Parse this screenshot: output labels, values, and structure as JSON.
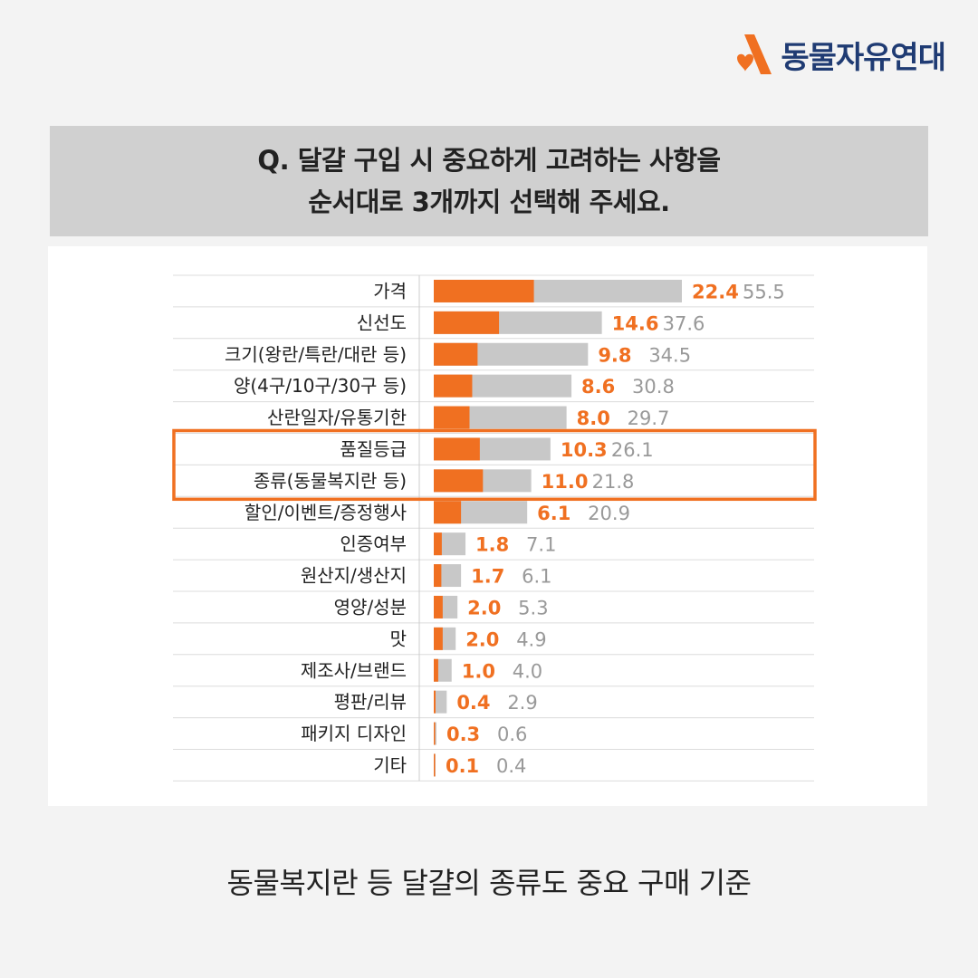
{
  "brand": {
    "name": "동물자유연대",
    "accent_color": "#f07021",
    "text_color": "#1f3b73",
    "logo_icon": "heart-a-logo-icon"
  },
  "question": {
    "line1": "Q. 달걀 구입 시 중요하게 고려하는 사항을",
    "line2": "순서대로 3개까지 선택해 주세요."
  },
  "caption": "동물복지란 등 달걀의 종류도 중요 구매 기준",
  "chart_data": {
    "type": "bar",
    "orientation": "horizontal",
    "categories": [
      "가격",
      "신선도",
      "크기(왕란/특란/대란 등)",
      "양(4구/10구/30구 등)",
      "산란일자/유통기한",
      "품질등급",
      "종류(동물복지란 등)",
      "할인/이벤트/증정행사",
      "인증여부",
      "원산지/생산지",
      "영양/성분",
      "맛",
      "제조사/브랜드",
      "평판/리뷰",
      "패키지 디자인",
      "기타"
    ],
    "series": [
      {
        "color": "#f07021",
        "values": [
          22.4,
          14.6,
          9.8,
          8.6,
          8.0,
          10.3,
          11.0,
          6.1,
          1.8,
          1.7,
          2.0,
          2.0,
          1.0,
          0.4,
          0.3,
          0.1
        ]
      },
      {
        "color": "#c8c8c8",
        "values": [
          55.5,
          37.6,
          34.5,
          30.8,
          29.7,
          26.1,
          21.8,
          20.9,
          7.1,
          6.1,
          5.3,
          4.9,
          4.0,
          2.9,
          0.6,
          0.4
        ]
      }
    ],
    "value_labels": {
      "first": [
        "22.4",
        "14.6",
        "9.8",
        "8.6",
        "8.0",
        "10.3",
        "11.0",
        "6.1",
        "1.8",
        "1.7",
        "2.0",
        "2.0",
        "1.0",
        "0.4",
        "0.3",
        "0.1"
      ],
      "total": [
        "55.5",
        "37.6",
        "34.5",
        "30.8",
        "29.7",
        "26.1",
        "21.8",
        "20.9",
        "7.1",
        "6.1",
        "5.3",
        "4.9",
        "4.0",
        "2.9",
        "0.6",
        "0.4"
      ],
      "first_color": "#f07021",
      "total_color": "#999999"
    },
    "highlight": {
      "categories": [
        "품질등급",
        "종류(동물복지란 등)"
      ],
      "color": "#f07021"
    },
    "xlim": [
      0,
      55.5
    ],
    "grid": false,
    "title": "",
    "xlabel": "",
    "ylabel": ""
  }
}
